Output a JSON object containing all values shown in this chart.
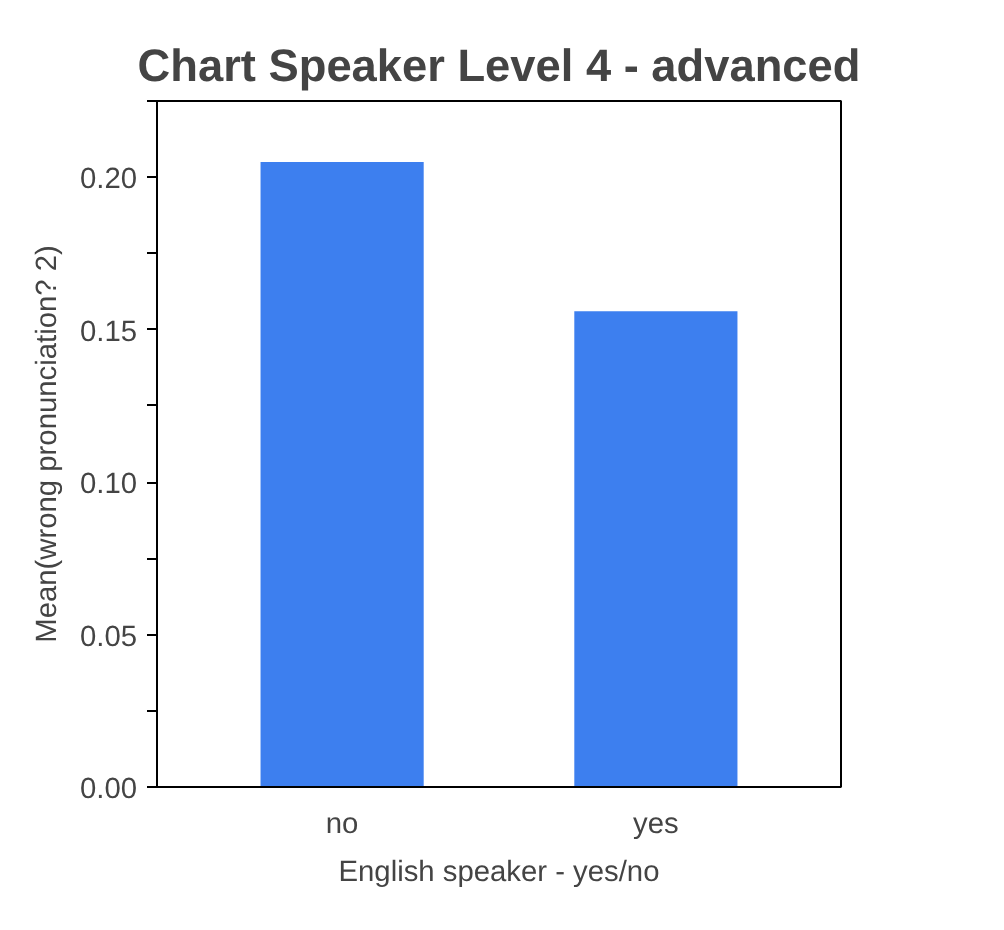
{
  "chart_data": {
    "type": "bar",
    "title": "Chart Speaker Level 4 - advanced",
    "xlabel": "English speaker - yes/no",
    "ylabel": "Mean(wrong pronunciation? 2)",
    "categories": [
      "no",
      "yes"
    ],
    "values": [
      0.205,
      0.156
    ],
    "color": "#3d7fef",
    "ylim": [
      0,
      0.225
    ],
    "yticks": [
      {
        "value": 0,
        "label": "0.00"
      },
      {
        "value": 0.025,
        "label": null
      },
      {
        "value": 0.05,
        "label": "0.05"
      },
      {
        "value": 0.075,
        "label": null
      },
      {
        "value": 0.1,
        "label": "0.10"
      },
      {
        "value": 0.125,
        "label": null
      },
      {
        "value": 0.15,
        "label": "0.15"
      },
      {
        "value": 0.175,
        "label": null
      },
      {
        "value": 0.2,
        "label": "0.20"
      },
      {
        "value": 0.225,
        "label": null
      }
    ],
    "grid": false
  }
}
